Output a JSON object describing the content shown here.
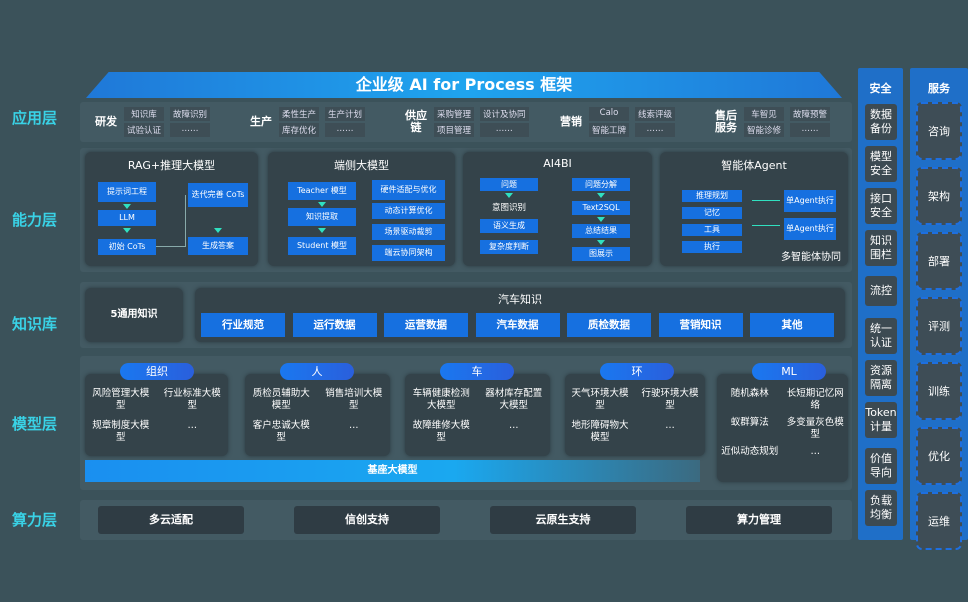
{
  "title": "企业级 AI for Process 框架",
  "layers": {
    "app": "应用层",
    "capability": "能力层",
    "knowledge": "知识库",
    "model": "模型层",
    "compute": "算力层"
  },
  "app_groups": [
    {
      "name": "研发",
      "items": [
        "知识库",
        "故障识别",
        "试验认证",
        "……"
      ]
    },
    {
      "name": "生产",
      "items": [
        "柔性生产",
        "生产计划",
        "库存优化",
        "……"
      ]
    },
    {
      "name": "供应链",
      "items": [
        "采购管理",
        "设计及协同",
        "项目管理",
        "……"
      ]
    },
    {
      "name": "营销",
      "items": [
        "Calo",
        "线索评级",
        "智能工牌",
        "……"
      ]
    },
    {
      "name": "售后服务",
      "items": [
        "车智见",
        "故障预警",
        "智能诊修",
        "……"
      ]
    }
  ],
  "capability": {
    "rag": {
      "title": "RAG+推理大模型",
      "boxes": [
        "提示词工程",
        "LLM",
        "初始 CoTs",
        "迭代完善 CoTs",
        "生成答案"
      ]
    },
    "edge": {
      "title": "端侧大模型",
      "left": [
        "Teacher 模型",
        "知识提取",
        "Student 模型"
      ],
      "right": [
        "硬件适配与优化",
        "动态计算优化",
        "场景驱动裁剪",
        "端云协同架构"
      ]
    },
    "ai4bi": {
      "title": "AI4BI",
      "left": [
        "问题",
        "意图识别",
        "语义生成",
        "复杂度判断"
      ],
      "right": [
        "问题分解",
        "Text2SQL",
        "总结结果",
        "图展示"
      ]
    },
    "agent": {
      "title": "智能体Agent",
      "left": [
        "推理规划",
        "记忆",
        "工具",
        "执行"
      ],
      "right": [
        "单Agent执行",
        "单Agent执行"
      ],
      "footer": "多智能体协同"
    }
  },
  "knowledge": {
    "general": "5通用知识",
    "auto_title": "汽车知识",
    "items": [
      "行业规范",
      "运行数据",
      "运营数据",
      "汽车数据",
      "质检数据",
      "营销知识",
      "其他"
    ]
  },
  "model": {
    "groups": [
      {
        "name": "组织",
        "items": [
          "风险管理大模型",
          "行业标准大模型",
          "规章制度大模型",
          "…"
        ]
      },
      {
        "name": "人",
        "items": [
          "质检员辅助大模型",
          "销售培训大模型",
          "客户忠诚大模型",
          "…"
        ]
      },
      {
        "name": "车",
        "items": [
          "车辆健康检测大模型",
          "器材库存配置大模型",
          "故障维修大模型",
          "…"
        ]
      },
      {
        "name": "环",
        "items": [
          "天气环境大模型",
          "行驶环境大模型",
          "地形障碍物大模型",
          "…"
        ]
      },
      {
        "name": "ML",
        "items": [
          "随机森林",
          "长短期记忆网络",
          "蚁群算法",
          "多变量灰色模型",
          "近似动态规划",
          "…"
        ]
      }
    ],
    "base": "基座大模型"
  },
  "compute": [
    "多云适配",
    "信创支持",
    "云原生支持",
    "算力管理"
  ],
  "security": {
    "title": "安全",
    "items": [
      "数据备份",
      "模型安全",
      "接口安全",
      "知识围栏",
      "流控",
      "统一认证",
      "资源隔离",
      "Token计量",
      "价值导向",
      "负载均衡"
    ]
  },
  "service": {
    "title": "服务",
    "items": [
      "咨询",
      "架构",
      "部署",
      "评测",
      "训练",
      "优化",
      "运维"
    ]
  }
}
